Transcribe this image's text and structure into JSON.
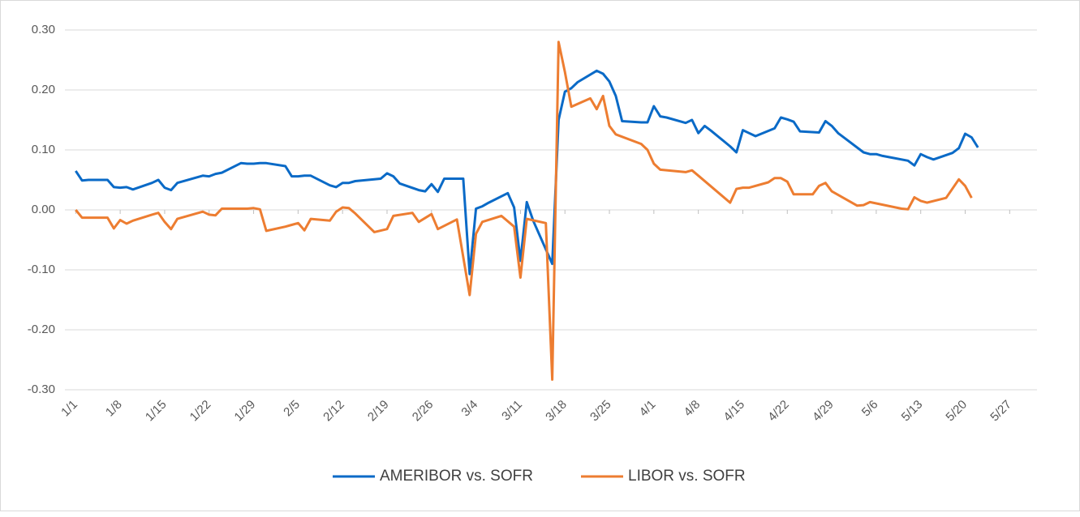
{
  "chart_data": {
    "type": "line",
    "xlim": [
      -1.7,
      151.3
    ],
    "xticks": [
      {
        "value": 0,
        "label": "1/1"
      },
      {
        "value": 7,
        "label": "1/8"
      },
      {
        "value": 14,
        "label": "1/15"
      },
      {
        "value": 21,
        "label": "1/22"
      },
      {
        "value": 28,
        "label": "1/29"
      },
      {
        "value": 35,
        "label": "2/5"
      },
      {
        "value": 42,
        "label": "2/12"
      },
      {
        "value": 49,
        "label": "2/19"
      },
      {
        "value": 56,
        "label": "2/26"
      },
      {
        "value": 63,
        "label": "3/4"
      },
      {
        "value": 70,
        "label": "3/11"
      },
      {
        "value": 77,
        "label": "3/18"
      },
      {
        "value": 84,
        "label": "3/25"
      },
      {
        "value": 91,
        "label": "4/1"
      },
      {
        "value": 98,
        "label": "4/8"
      },
      {
        "value": 105,
        "label": "4/15"
      },
      {
        "value": 112,
        "label": "4/22"
      },
      {
        "value": 119,
        "label": "4/29"
      },
      {
        "value": 126,
        "label": "5/6"
      },
      {
        "value": 133,
        "label": "5/13"
      },
      {
        "value": 140,
        "label": "5/20"
      },
      {
        "value": 147,
        "label": "5/27"
      }
    ],
    "ylim": [
      -0.3,
      0.3
    ],
    "yticks": [
      {
        "value": -0.3,
        "label": "-0.30"
      },
      {
        "value": -0.2,
        "label": "-0.20"
      },
      {
        "value": -0.1,
        "label": "-0.10"
      },
      {
        "value": 0,
        "label": "0.00"
      },
      {
        "value": 0.1,
        "label": "0.10"
      },
      {
        "value": 0.2,
        "label": "0.20"
      },
      {
        "value": 0.3,
        "label": "0.30"
      }
    ],
    "grid": true,
    "legend": "bottom",
    "series": [
      {
        "name": "AMERIBOR vs. SOFR",
        "color": "#0a6ac7",
        "x": [
          0,
          1,
          2,
          5,
          6,
          7,
          8,
          9,
          12,
          13,
          14,
          15,
          16,
          20,
          21,
          22,
          23,
          26,
          27,
          28,
          29,
          30,
          33,
          34,
          35,
          36,
          37,
          40,
          41,
          42,
          43,
          44,
          48,
          49,
          50,
          51,
          54,
          55,
          56,
          57,
          58,
          61,
          62,
          63,
          64,
          65,
          68,
          69,
          70,
          71,
          72,
          75,
          76,
          77,
          78,
          79,
          82,
          83,
          84,
          85,
          86,
          89,
          90,
          91,
          92,
          93,
          96,
          97,
          98,
          99,
          100,
          103,
          104,
          105,
          106,
          107,
          110,
          111,
          112,
          113,
          114,
          117,
          118,
          119,
          120,
          121,
          124,
          125,
          126,
          127,
          128,
          131,
          132,
          133,
          134,
          135,
          138,
          139,
          140,
          141,
          142
        ],
        "values": [
          0.065,
          0.049,
          0.05,
          0.05,
          0.038,
          0.037,
          0.038,
          0.034,
          0.045,
          0.05,
          0.037,
          0.033,
          0.045,
          0.057,
          0.056,
          0.06,
          0.062,
          0.078,
          0.077,
          0.077,
          0.078,
          0.078,
          0.073,
          0.056,
          0.056,
          0.057,
          0.057,
          0.041,
          0.038,
          0.045,
          0.045,
          0.048,
          0.052,
          0.061,
          0.056,
          0.044,
          0.033,
          0.031,
          0.043,
          0.03,
          0.052,
          0.052,
          -0.107,
          0.002,
          0.006,
          0.012,
          0.028,
          0.004,
          -0.085,
          0.013,
          -0.018,
          -0.09,
          0.15,
          0.197,
          0.203,
          0.213,
          0.232,
          0.227,
          0.214,
          0.19,
          0.148,
          0.146,
          0.146,
          0.173,
          0.156,
          0.154,
          0.145,
          0.15,
          0.128,
          0.14,
          0.132,
          0.106,
          0.096,
          0.133,
          0.128,
          0.123,
          0.136,
          0.154,
          0.151,
          0.147,
          0.131,
          0.129,
          0.148,
          0.14,
          0.128,
          0.12,
          0.096,
          0.093,
          0.093,
          0.09,
          0.088,
          0.082,
          0.074,
          0.093,
          0.088,
          0.084,
          0.095,
          0.103,
          0.127,
          0.121,
          0.104
        ]
      },
      {
        "name": "LIBOR vs. SOFR",
        "color": "#ed7d31",
        "x": [
          0,
          1,
          2,
          5,
          6,
          7,
          8,
          9,
          12,
          13,
          14,
          15,
          16,
          20,
          21,
          22,
          23,
          26,
          27,
          28,
          29,
          30,
          33,
          34,
          35,
          36,
          37,
          40,
          41,
          42,
          43,
          44,
          47,
          49,
          50,
          53,
          54,
          56,
          57,
          60,
          62,
          63,
          64,
          67,
          69,
          70,
          71,
          74,
          75,
          76,
          77,
          78,
          81,
          82,
          83,
          84,
          85,
          89,
          90,
          91,
          92,
          96,
          97,
          98,
          103,
          104,
          105,
          106,
          109,
          110,
          111,
          112,
          113,
          116,
          117,
          118,
          119,
          123,
          124,
          125,
          130,
          131,
          132,
          133,
          134,
          137,
          139,
          140,
          141
        ],
        "values": [
          0,
          -0.013,
          -0.013,
          -0.013,
          -0.031,
          -0.017,
          -0.023,
          -0.018,
          -0.008,
          -0.005,
          -0.02,
          -0.032,
          -0.015,
          -0.003,
          -0.008,
          -0.009,
          0.002,
          0.002,
          0.002,
          0.003,
          0.001,
          -0.035,
          -0.028,
          -0.025,
          -0.022,
          -0.034,
          -0.015,
          -0.018,
          -0.003,
          0.004,
          0.003,
          -0.006,
          -0.037,
          -0.032,
          -0.01,
          -0.005,
          -0.02,
          -0.007,
          -0.032,
          -0.016,
          -0.142,
          -0.04,
          -0.02,
          -0.01,
          -0.028,
          -0.113,
          -0.015,
          -0.022,
          -0.283,
          0.28,
          0.23,
          0.172,
          0.186,
          0.168,
          0.19,
          0.14,
          0.126,
          0.11,
          0.1,
          0.077,
          0.067,
          0.063,
          0.066,
          0.057,
          0.012,
          0.035,
          0.037,
          0.037,
          0.046,
          0.053,
          0.053,
          0.047,
          0.026,
          0.026,
          0.04,
          0.045,
          0.031,
          0.007,
          0.008,
          0.013,
          0.002,
          0.001,
          0.021,
          0.015,
          0.012,
          0.02,
          0.051,
          0.04,
          0.02
        ]
      }
    ]
  }
}
